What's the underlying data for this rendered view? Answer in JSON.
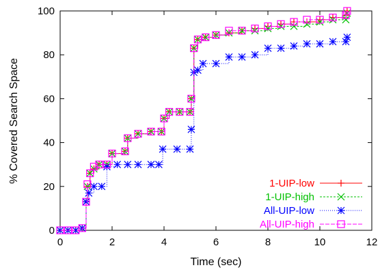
{
  "chart_data": {
    "type": "line",
    "title": "",
    "xlabel": "Time (sec)",
    "ylabel": "% Covered Search Space",
    "xlim": [
      0,
      12
    ],
    "ylim": [
      0,
      100
    ],
    "xticks": [
      "0",
      "2",
      "4",
      "6",
      "8",
      "10",
      "12"
    ],
    "yticks": [
      "0",
      "20",
      "40",
      "60",
      "80",
      "100"
    ],
    "grid": false,
    "legend_position": "bottom-right",
    "series": [
      {
        "name": "1-UIP-low",
        "color": "#ff0000",
        "marker": "plus",
        "points": [
          [
            0,
            0
          ],
          [
            0.3,
            0
          ],
          [
            0.6,
            0
          ],
          [
            0.85,
            1
          ],
          [
            1.0,
            13
          ],
          [
            1.05,
            20
          ],
          [
            1.15,
            26
          ],
          [
            1.3,
            28
          ],
          [
            1.5,
            30
          ],
          [
            1.8,
            30
          ],
          [
            2.0,
            35
          ],
          [
            2.5,
            36
          ],
          [
            2.6,
            42
          ],
          [
            3.0,
            44
          ],
          [
            3.5,
            45
          ],
          [
            3.9,
            45
          ],
          [
            4.0,
            51
          ],
          [
            4.2,
            54
          ],
          [
            4.6,
            54
          ],
          [
            5.0,
            54
          ],
          [
            5.05,
            60
          ],
          [
            5.15,
            83
          ],
          [
            5.3,
            87
          ],
          [
            5.6,
            88
          ],
          [
            6.0,
            89
          ],
          [
            6.5,
            90
          ],
          [
            7.0,
            91
          ],
          [
            7.5,
            92
          ],
          [
            8.0,
            93
          ],
          [
            8.5,
            94
          ],
          [
            9.0,
            95
          ],
          [
            9.5,
            95
          ],
          [
            10.0,
            96
          ],
          [
            10.5,
            97
          ],
          [
            11.0,
            98
          ],
          [
            11.05,
            100
          ]
        ]
      },
      {
        "name": "1-UIP-high",
        "color": "#00c000",
        "marker": "x",
        "points": [
          [
            0,
            0
          ],
          [
            0.3,
            0
          ],
          [
            0.6,
            0
          ],
          [
            0.85,
            1
          ],
          [
            1.0,
            13
          ],
          [
            1.05,
            20
          ],
          [
            1.15,
            26
          ],
          [
            1.3,
            28
          ],
          [
            1.5,
            30
          ],
          [
            1.8,
            30
          ],
          [
            2.0,
            35
          ],
          [
            2.5,
            36
          ],
          [
            2.6,
            42
          ],
          [
            3.0,
            44
          ],
          [
            3.5,
            45
          ],
          [
            3.9,
            45
          ],
          [
            4.0,
            51
          ],
          [
            4.2,
            54
          ],
          [
            4.6,
            54
          ],
          [
            5.0,
            54
          ],
          [
            5.05,
            60
          ],
          [
            5.15,
            83
          ],
          [
            5.3,
            87
          ],
          [
            5.6,
            88
          ],
          [
            6.0,
            89
          ],
          [
            6.5,
            90
          ],
          [
            7.0,
            91
          ],
          [
            7.5,
            91
          ],
          [
            8.0,
            92
          ],
          [
            8.5,
            93
          ],
          [
            9.0,
            93
          ],
          [
            9.5,
            94
          ],
          [
            10.0,
            95
          ],
          [
            10.5,
            96
          ],
          [
            11.0,
            96
          ],
          [
            11.05,
            99
          ]
        ]
      },
      {
        "name": "All-UIP-low",
        "color": "#0000ff",
        "marker": "star",
        "points": [
          [
            0,
            0
          ],
          [
            0.3,
            0
          ],
          [
            0.6,
            0
          ],
          [
            0.85,
            1
          ],
          [
            1.0,
            13
          ],
          [
            1.1,
            17
          ],
          [
            1.3,
            20
          ],
          [
            1.6,
            20
          ],
          [
            1.8,
            29
          ],
          [
            2.2,
            30
          ],
          [
            2.6,
            30
          ],
          [
            3.0,
            30
          ],
          [
            3.5,
            30
          ],
          [
            3.8,
            30
          ],
          [
            3.95,
            37
          ],
          [
            4.5,
            37
          ],
          [
            5.0,
            37
          ],
          [
            5.05,
            46
          ],
          [
            5.15,
            72
          ],
          [
            5.3,
            73
          ],
          [
            5.5,
            76
          ],
          [
            6.0,
            76
          ],
          [
            6.5,
            79
          ],
          [
            7.0,
            79
          ],
          [
            7.5,
            80
          ],
          [
            8.0,
            83
          ],
          [
            8.5,
            83
          ],
          [
            9.0,
            84
          ],
          [
            9.5,
            85
          ],
          [
            10.0,
            85
          ],
          [
            10.5,
            86
          ],
          [
            11.0,
            86
          ],
          [
            11.05,
            88
          ]
        ]
      },
      {
        "name": "All-UIP-high",
        "color": "#ff00ff",
        "marker": "square",
        "points": [
          [
            0,
            0
          ],
          [
            0.3,
            0
          ],
          [
            0.6,
            0
          ],
          [
            0.85,
            1
          ],
          [
            1.0,
            13
          ],
          [
            1.05,
            21
          ],
          [
            1.15,
            26
          ],
          [
            1.3,
            29
          ],
          [
            1.5,
            30
          ],
          [
            1.8,
            30
          ],
          [
            2.0,
            35
          ],
          [
            2.5,
            36
          ],
          [
            2.6,
            42
          ],
          [
            3.0,
            44
          ],
          [
            3.5,
            45
          ],
          [
            3.9,
            45
          ],
          [
            4.0,
            51
          ],
          [
            4.2,
            54
          ],
          [
            4.6,
            54
          ],
          [
            5.0,
            54
          ],
          [
            5.05,
            60
          ],
          [
            5.15,
            83
          ],
          [
            5.3,
            87
          ],
          [
            5.6,
            88
          ],
          [
            6.0,
            89
          ],
          [
            6.5,
            91
          ],
          [
            7.0,
            91
          ],
          [
            7.5,
            92
          ],
          [
            8.0,
            93
          ],
          [
            8.5,
            94
          ],
          [
            9.0,
            95
          ],
          [
            9.5,
            96
          ],
          [
            10.0,
            96
          ],
          [
            10.5,
            97
          ],
          [
            11.0,
            98
          ],
          [
            11.05,
            100
          ]
        ]
      }
    ]
  }
}
